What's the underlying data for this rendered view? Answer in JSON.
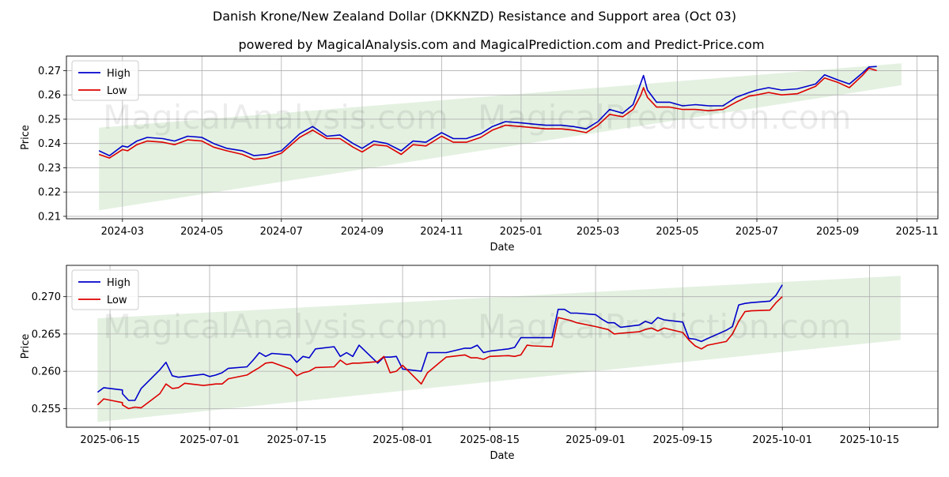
{
  "title": "Danish Krone/New Zealand Dollar (DKKNZD) Resistance and Support area (Oct 03)",
  "subtitle": "powered by MagicalAnalysis.com and MagicalPrediction.com and Predict-Price.com",
  "watermarks": [
    "MagicalAnalysis.com",
    "MagicalPrediction.com"
  ],
  "colors": {
    "high": "#0000cc",
    "low": "#dd0000",
    "band": "#d8ebd4",
    "grid": "#b0b0b0"
  },
  "chart_data": [
    {
      "type": "line",
      "xlabel": "Date",
      "ylabel": "Price",
      "grid": true,
      "legend": "top-left",
      "xlim": [
        "2024-01-18",
        "2025-11-17"
      ],
      "ylim": [
        0.209,
        0.276
      ],
      "x_ticks": [
        "2024-03",
        "2024-05",
        "2024-07",
        "2024-09",
        "2024-11",
        "2025-01",
        "2025-03",
        "2025-05",
        "2025-07",
        "2025-09",
        "2025-11"
      ],
      "y_ticks": [
        "0.21",
        "0.22",
        "0.23",
        "0.24",
        "0.25",
        "0.26",
        "0.27"
      ],
      "band": {
        "x": [
          "2024-02-12",
          "2025-10-20"
        ],
        "lower": [
          0.2125,
          0.264
        ],
        "upper": [
          0.2465,
          0.273
        ]
      },
      "series": [
        {
          "name": "High",
          "x": [
            "2024-02-12",
            "2024-02-20",
            "2024-03-01",
            "2024-03-05",
            "2024-03-12",
            "2024-03-20",
            "2024-04-01",
            "2024-04-10",
            "2024-04-20",
            "2024-05-01",
            "2024-05-10",
            "2024-05-20",
            "2024-06-01",
            "2024-06-10",
            "2024-06-20",
            "2024-07-01",
            "2024-07-15",
            "2024-07-25",
            "2024-08-05",
            "2024-08-15",
            "2024-08-25",
            "2024-09-01",
            "2024-09-10",
            "2024-09-20",
            "2024-10-01",
            "2024-10-10",
            "2024-10-20",
            "2024-11-01",
            "2024-11-10",
            "2024-11-20",
            "2024-12-01",
            "2024-12-10",
            "2024-12-20",
            "2025-01-01",
            "2025-01-10",
            "2025-01-20",
            "2025-02-01",
            "2025-02-10",
            "2025-02-20",
            "2025-03-01",
            "2025-03-10",
            "2025-03-20",
            "2025-03-28",
            "2025-04-03",
            "2025-04-05",
            "2025-04-08",
            "2025-04-15",
            "2025-04-25",
            "2025-05-05",
            "2025-05-15",
            "2025-05-25",
            "2025-06-05",
            "2025-06-15",
            "2025-06-25",
            "2025-07-01",
            "2025-07-10",
            "2025-07-20",
            "2025-08-01",
            "2025-08-15",
            "2025-08-22",
            "2025-09-01",
            "2025-09-10",
            "2025-09-20",
            "2025-09-25",
            "2025-10-01"
          ],
          "values": [
            0.237,
            0.235,
            0.239,
            0.2385,
            0.241,
            0.2425,
            0.242,
            0.241,
            0.243,
            0.2425,
            0.24,
            0.238,
            0.237,
            0.235,
            0.2355,
            0.237,
            0.244,
            0.247,
            0.243,
            0.2435,
            0.24,
            0.238,
            0.241,
            0.24,
            0.237,
            0.241,
            0.2405,
            0.2445,
            0.242,
            0.242,
            0.244,
            0.247,
            0.249,
            0.2485,
            0.248,
            0.2475,
            0.2475,
            0.247,
            0.246,
            0.249,
            0.254,
            0.2525,
            0.256,
            0.265,
            0.268,
            0.262,
            0.257,
            0.257,
            0.2555,
            0.256,
            0.2555,
            0.2555,
            0.259,
            0.261,
            0.262,
            0.263,
            0.262,
            0.2625,
            0.2645,
            0.2683,
            0.2662,
            0.2645,
            0.269,
            0.2715,
            0.2717
          ]
        },
        {
          "name": "Low",
          "x": [
            "2024-02-12",
            "2024-02-20",
            "2024-03-01",
            "2024-03-05",
            "2024-03-12",
            "2024-03-20",
            "2024-04-01",
            "2024-04-10",
            "2024-04-20",
            "2024-05-01",
            "2024-05-10",
            "2024-05-20",
            "2024-06-01",
            "2024-06-10",
            "2024-06-20",
            "2024-07-01",
            "2024-07-15",
            "2024-07-25",
            "2024-08-05",
            "2024-08-15",
            "2024-08-25",
            "2024-09-01",
            "2024-09-10",
            "2024-09-20",
            "2024-10-01",
            "2024-10-10",
            "2024-10-20",
            "2024-11-01",
            "2024-11-10",
            "2024-11-20",
            "2024-12-01",
            "2024-12-10",
            "2024-12-20",
            "2025-01-01",
            "2025-01-10",
            "2025-01-20",
            "2025-02-01",
            "2025-02-10",
            "2025-02-20",
            "2025-03-01",
            "2025-03-10",
            "2025-03-20",
            "2025-03-28",
            "2025-04-03",
            "2025-04-05",
            "2025-04-08",
            "2025-04-15",
            "2025-04-25",
            "2025-05-05",
            "2025-05-15",
            "2025-05-25",
            "2025-06-05",
            "2025-06-15",
            "2025-06-25",
            "2025-07-01",
            "2025-07-10",
            "2025-07-20",
            "2025-08-01",
            "2025-08-15",
            "2025-08-22",
            "2025-09-01",
            "2025-09-10",
            "2025-09-20",
            "2025-09-25",
            "2025-10-01"
          ],
          "values": [
            0.2355,
            0.234,
            0.2375,
            0.237,
            0.2395,
            0.241,
            0.2405,
            0.2395,
            0.2415,
            0.241,
            0.2385,
            0.237,
            0.2355,
            0.2335,
            0.234,
            0.236,
            0.2425,
            0.2455,
            0.242,
            0.242,
            0.2385,
            0.2365,
            0.2395,
            0.239,
            0.2355,
            0.2395,
            0.239,
            0.243,
            0.2405,
            0.2405,
            0.2425,
            0.2455,
            0.2475,
            0.247,
            0.2465,
            0.246,
            0.246,
            0.2455,
            0.2445,
            0.2475,
            0.252,
            0.251,
            0.254,
            0.26,
            0.263,
            0.259,
            0.255,
            0.255,
            0.254,
            0.254,
            0.2535,
            0.254,
            0.257,
            0.2595,
            0.26,
            0.261,
            0.26,
            0.2605,
            0.2635,
            0.267,
            0.2652,
            0.263,
            0.268,
            0.271,
            0.27
          ]
        }
      ]
    },
    {
      "type": "line",
      "xlabel": "Date",
      "ylabel": "Price",
      "grid": true,
      "legend": "top-left",
      "xlim": [
        "2025-06-08",
        "2025-10-26"
      ],
      "ylim": [
        0.2525,
        0.2742
      ],
      "x_ticks": [
        "2025-06-15",
        "2025-07-01",
        "2025-07-15",
        "2025-08-01",
        "2025-08-15",
        "2025-09-01",
        "2025-09-15",
        "2025-10-01",
        "2025-10-15"
      ],
      "y_ticks": [
        "0.255",
        "0.260",
        "0.265",
        "0.270"
      ],
      "band": {
        "x": [
          "2025-06-13",
          "2025-10-20"
        ],
        "lower": [
          0.2532,
          0.2642
        ],
        "upper": [
          0.2671,
          0.2728
        ]
      },
      "series": [
        {
          "name": "High",
          "x": [
            "2025-06-13",
            "2025-06-14",
            "2025-06-17",
            "2025-06-17",
            "2025-06-18",
            "2025-06-19",
            "2025-06-20",
            "2025-06-23",
            "2025-06-24",
            "2025-06-25",
            "2025-06-26",
            "2025-06-27",
            "2025-06-30",
            "2025-07-01",
            "2025-07-02",
            "2025-07-03",
            "2025-07-04",
            "2025-07-07",
            "2025-07-08",
            "2025-07-09",
            "2025-07-10",
            "2025-07-11",
            "2025-07-14",
            "2025-07-15",
            "2025-07-16",
            "2025-07-17",
            "2025-07-18",
            "2025-07-21",
            "2025-07-22",
            "2025-07-23",
            "2025-07-24",
            "2025-07-25",
            "2025-07-28",
            "2025-07-29",
            "2025-07-30",
            "2025-07-31",
            "2025-08-01",
            "2025-08-04",
            "2025-08-05",
            "2025-08-06",
            "2025-08-07",
            "2025-08-08",
            "2025-08-11",
            "2025-08-12",
            "2025-08-13",
            "2025-08-14",
            "2025-08-15",
            "2025-08-18",
            "2025-08-19",
            "2025-08-20",
            "2025-08-21",
            "2025-08-22",
            "2025-08-25",
            "2025-08-26",
            "2025-08-27",
            "2025-08-28",
            "2025-08-29",
            "2025-09-01",
            "2025-09-02",
            "2025-09-03",
            "2025-09-04",
            "2025-09-05",
            "2025-09-08",
            "2025-09-09",
            "2025-09-10",
            "2025-09-11",
            "2025-09-12",
            "2025-09-15",
            "2025-09-16",
            "2025-09-17",
            "2025-09-18",
            "2025-09-19",
            "2025-09-22",
            "2025-09-23",
            "2025-09-24",
            "2025-09-25",
            "2025-09-26",
            "2025-09-29",
            "2025-09-30",
            "2025-10-01"
          ],
          "values": [
            0.2572,
            0.2578,
            0.2575,
            0.257,
            0.2561,
            0.2561,
            0.2577,
            0.2602,
            0.2612,
            0.2594,
            0.2592,
            0.2593,
            0.2596,
            0.2593,
            0.2595,
            0.2598,
            0.2604,
            0.2606,
            0.2615,
            0.2625,
            0.262,
            0.2624,
            0.2622,
            0.2612,
            0.262,
            0.2618,
            0.263,
            0.2633,
            0.262,
            0.2625,
            0.262,
            0.2635,
            0.2611,
            0.2619,
            0.2619,
            0.262,
            0.2603,
            0.26,
            0.2625,
            0.2625,
            0.2625,
            0.2625,
            0.2631,
            0.2631,
            0.2635,
            0.2625,
            0.2627,
            0.263,
            0.2632,
            0.2645,
            0.2645,
            0.2645,
            0.2645,
            0.2683,
            0.2683,
            0.2678,
            0.2678,
            0.2676,
            0.267,
            0.2665,
            0.2665,
            0.2659,
            0.2662,
            0.2667,
            0.2664,
            0.2672,
            0.2669,
            0.2666,
            0.2644,
            0.2643,
            0.264,
            0.2644,
            0.2655,
            0.266,
            0.2689,
            0.2691,
            0.2692,
            0.2694,
            0.2702,
            0.2716
          ]
        },
        {
          "name": "Low",
          "x": [
            "2025-06-13",
            "2025-06-14",
            "2025-06-17",
            "2025-06-17",
            "2025-06-18",
            "2025-06-19",
            "2025-06-20",
            "2025-06-23",
            "2025-06-24",
            "2025-06-25",
            "2025-06-26",
            "2025-06-27",
            "2025-06-30",
            "2025-07-01",
            "2025-07-02",
            "2025-07-03",
            "2025-07-04",
            "2025-07-07",
            "2025-07-08",
            "2025-07-09",
            "2025-07-10",
            "2025-07-11",
            "2025-07-14",
            "2025-07-15",
            "2025-07-16",
            "2025-07-17",
            "2025-07-18",
            "2025-07-21",
            "2025-07-22",
            "2025-07-23",
            "2025-07-24",
            "2025-07-25",
            "2025-07-28",
            "2025-07-29",
            "2025-07-30",
            "2025-07-31",
            "2025-08-01",
            "2025-08-04",
            "2025-08-05",
            "2025-08-06",
            "2025-08-07",
            "2025-08-08",
            "2025-08-11",
            "2025-08-12",
            "2025-08-13",
            "2025-08-14",
            "2025-08-15",
            "2025-08-18",
            "2025-08-19",
            "2025-08-20",
            "2025-08-21",
            "2025-08-22",
            "2025-08-25",
            "2025-08-26",
            "2025-08-27",
            "2025-08-28",
            "2025-08-29",
            "2025-09-01",
            "2025-09-02",
            "2025-09-03",
            "2025-09-04",
            "2025-09-05",
            "2025-09-08",
            "2025-09-09",
            "2025-09-10",
            "2025-09-11",
            "2025-09-12",
            "2025-09-15",
            "2025-09-16",
            "2025-09-17",
            "2025-09-18",
            "2025-09-19",
            "2025-09-22",
            "2025-09-23",
            "2025-09-24",
            "2025-09-25",
            "2025-09-26",
            "2025-09-29",
            "2025-09-30",
            "2025-10-01"
          ],
          "values": [
            0.2555,
            0.2563,
            0.2558,
            0.2555,
            0.255,
            0.2552,
            0.2551,
            0.257,
            0.2583,
            0.2577,
            0.2578,
            0.2584,
            0.2581,
            0.2582,
            0.2583,
            0.2583,
            0.259,
            0.2595,
            0.26,
            0.2605,
            0.2611,
            0.2612,
            0.2603,
            0.2594,
            0.2598,
            0.26,
            0.2605,
            0.2606,
            0.2615,
            0.2609,
            0.2611,
            0.2611,
            0.2613,
            0.262,
            0.2598,
            0.26,
            0.2608,
            0.2583,
            0.2598,
            0.2605,
            0.2612,
            0.2619,
            0.2622,
            0.2618,
            0.2618,
            0.2616,
            0.262,
            0.2621,
            0.262,
            0.2622,
            0.2635,
            0.2634,
            0.2633,
            0.2672,
            0.267,
            0.2668,
            0.2665,
            0.266,
            0.2658,
            0.2656,
            0.265,
            0.2651,
            0.2653,
            0.2656,
            0.2658,
            0.2654,
            0.2658,
            0.2652,
            0.2642,
            0.2634,
            0.263,
            0.2635,
            0.264,
            0.265,
            0.2667,
            0.268,
            0.2681,
            0.2682,
            0.2692,
            0.27
          ]
        }
      ]
    }
  ]
}
